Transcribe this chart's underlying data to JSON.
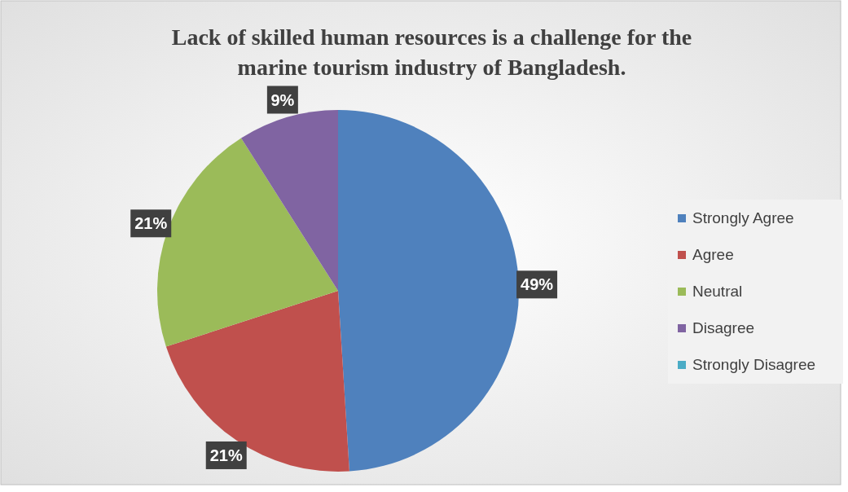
{
  "chart_data": {
    "type": "pie",
    "title": "Lack of skilled human resources is a challenge for the marine tourism industry of Bangladesh.",
    "categories": [
      "Strongly Agree",
      "Agree",
      "Neutral",
      "Disagree",
      "Strongly Disagree"
    ],
    "values": [
      49,
      21,
      21,
      9,
      0
    ],
    "colors": [
      "#4f81bd",
      "#c0504d",
      "#9bbb59",
      "#8064a2",
      "#4bacc6"
    ],
    "value_labels": [
      "49%",
      "21%",
      "21%",
      "9%",
      null
    ],
    "legend": "right"
  }
}
